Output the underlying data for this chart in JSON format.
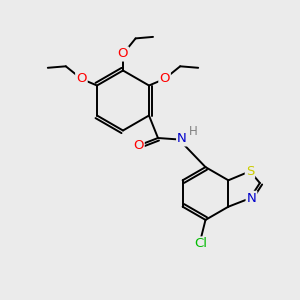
{
  "bg_color": "#ebebeb",
  "bond_color": "#000000",
  "atom_colors": {
    "O": "#ff0000",
    "N": "#0000cd",
    "S": "#cccc00",
    "Cl": "#00bb00",
    "C": "#000000",
    "H": "#808080"
  },
  "line_width": 1.4,
  "font_size": 9.5
}
